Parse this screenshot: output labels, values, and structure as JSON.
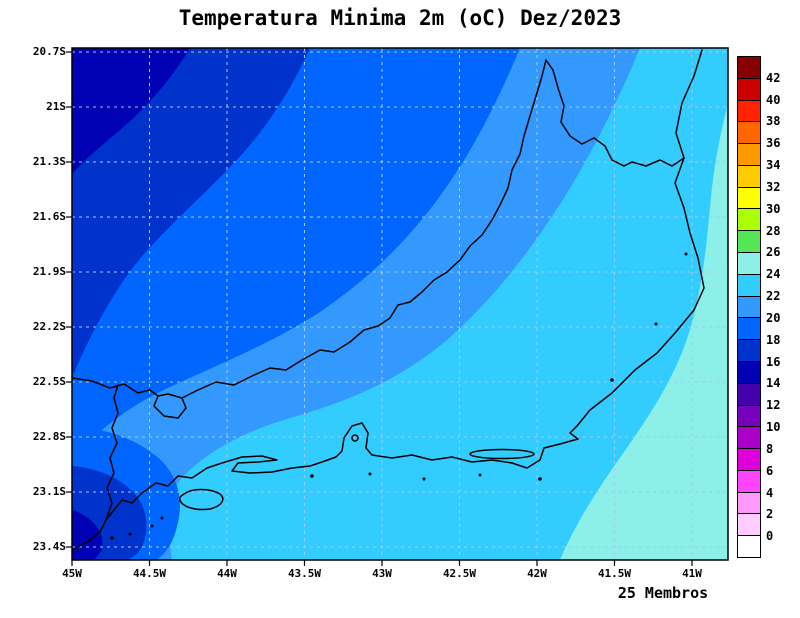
{
  "chart_data": {
    "type": "heatmap",
    "title": "Temperatura Minima 2m (oC) Dez/2023",
    "annotation": "25 Membros",
    "units": "oC",
    "x_ticks": [
      "45W",
      "44.5W",
      "44W",
      "43.5W",
      "43W",
      "42.5W",
      "42W",
      "41.5W",
      "41W"
    ],
    "y_ticks": [
      "20.7S",
      "21S",
      "21.3S",
      "21.6S",
      "21.9S",
      "22.2S",
      "22.5S",
      "22.8S",
      "23.1S",
      "23.4S"
    ],
    "x_axis": "longitude (degrees West)",
    "y_axis": "latitude (degrees South)",
    "grid": {
      "style": "dashed",
      "color": "#9ccdee"
    },
    "frame_color": "#000000",
    "coastline_color": "#000000",
    "colorbar": {
      "tick_values": [
        42,
        40,
        38,
        36,
        34,
        32,
        30,
        28,
        26,
        24,
        22,
        20,
        18,
        16,
        14,
        12,
        10,
        8,
        6,
        4,
        2,
        0
      ],
      "segment_colors_top_to_bottom": [
        "#870000",
        "#cd0000",
        "#ff2200",
        "#ff6600",
        "#ff9900",
        "#ffcc00",
        "#ffff00",
        "#aaff00",
        "#55e655",
        "#8cf0e8",
        "#33ccff",
        "#3399ff",
        "#0066ff",
        "#0033cc",
        "#0000b4",
        "#4400aa",
        "#7700bb",
        "#aa00cc",
        "#dd00dd",
        "#ff44ff",
        "#ff99ff",
        "#ffccff",
        "#ffffff"
      ]
    },
    "map_bands": {
      "b14_16": "#0000b4",
      "b16_18": "#0033cc",
      "b18_20": "#0066ff",
      "b20_22": "#3399ff",
      "b22_24": "#33ccff",
      "b24_26": "#8cf0e8"
    },
    "visible_temperature_bands_oC": [
      "14-16",
      "16-18",
      "18-20",
      "20-22",
      "22-24",
      "24-26"
    ],
    "band_distribution": {
      "14-16": "small cores at far northwest corner and southwest coastal mountains",
      "16-18": "northwest interior highlands and small pocket at bottom-left corner",
      "18-20": "broad band across the north and west",
      "20-22": "diagonal band through the centre",
      "22-24": "wide band over the south-centre and upper east",
      "24-26": "warmest band along the eastern/southeastern coast and ocean"
    }
  }
}
